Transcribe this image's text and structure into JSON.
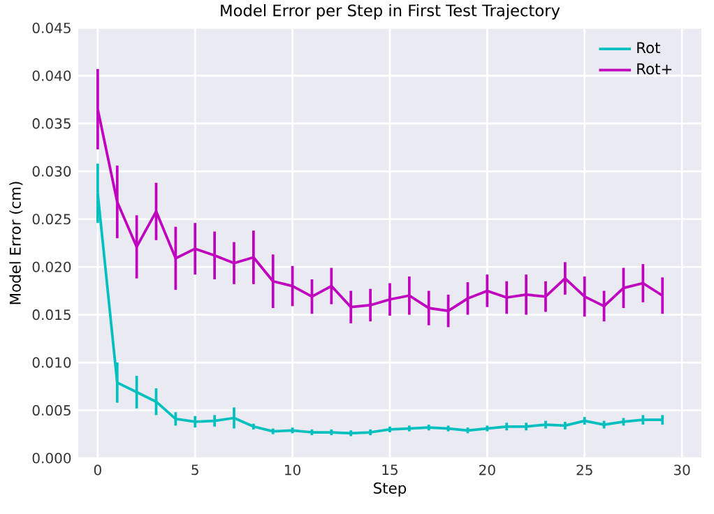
{
  "chart_data": {
    "type": "line",
    "title": "Model Error per Step in First Test Trajectory",
    "xlabel": "Step",
    "ylabel": "Model Error (cm)",
    "x": [
      0,
      1,
      2,
      3,
      4,
      5,
      6,
      7,
      8,
      9,
      10,
      11,
      12,
      13,
      14,
      15,
      16,
      17,
      18,
      19,
      20,
      21,
      22,
      23,
      24,
      25,
      26,
      27,
      28,
      29
    ],
    "series": [
      {
        "name": "Rot",
        "color": "#00bfbf",
        "values": [
          0.0277,
          0.0079,
          0.0069,
          0.0059,
          0.0041,
          0.0038,
          0.0039,
          0.0042,
          0.0033,
          0.0028,
          0.0029,
          0.0027,
          0.0027,
          0.0026,
          0.0027,
          0.003,
          0.0031,
          0.0032,
          0.0031,
          0.0029,
          0.0031,
          0.0033,
          0.0033,
          0.0035,
          0.0034,
          0.0039,
          0.0035,
          0.0038,
          0.004,
          0.004
        ],
        "errors": [
          0.0031,
          0.0021,
          0.0017,
          0.0014,
          0.0007,
          0.0006,
          0.0006,
          0.0011,
          0.0003,
          0.0003,
          0.0003,
          0.0003,
          0.0003,
          0.0003,
          0.0003,
          0.0003,
          0.0003,
          0.0003,
          0.0003,
          0.0003,
          0.0003,
          0.0004,
          0.0004,
          0.0004,
          0.0004,
          0.0004,
          0.0004,
          0.0004,
          0.0005,
          0.0005
        ]
      },
      {
        "name": "Rot+",
        "color": "#bf00bf",
        "values": [
          0.0365,
          0.0268,
          0.0221,
          0.0258,
          0.0209,
          0.0219,
          0.0212,
          0.0204,
          0.021,
          0.0185,
          0.018,
          0.0169,
          0.018,
          0.0158,
          0.016,
          0.0166,
          0.017,
          0.0157,
          0.0154,
          0.0167,
          0.0175,
          0.0168,
          0.0171,
          0.0169,
          0.0188,
          0.0169,
          0.0159,
          0.0178,
          0.0183,
          0.017
        ],
        "errors": [
          0.0042,
          0.0038,
          0.0033,
          0.003,
          0.0033,
          0.0027,
          0.0025,
          0.0022,
          0.0028,
          0.0028,
          0.0021,
          0.0018,
          0.0019,
          0.0017,
          0.0017,
          0.0017,
          0.002,
          0.0018,
          0.0017,
          0.0017,
          0.0017,
          0.0017,
          0.0021,
          0.0016,
          0.0017,
          0.0021,
          0.0016,
          0.0021,
          0.002,
          0.0019
        ]
      }
    ],
    "xlim": [
      -1,
      31
    ],
    "ylim": [
      0,
      0.045
    ],
    "xticks": [
      0,
      5,
      10,
      15,
      20,
      25,
      30
    ],
    "yticks": [
      {
        "value": 0,
        "label": "0.000"
      },
      {
        "value": 0.005,
        "label": "0.005"
      },
      {
        "value": 0.01,
        "label": "0.010"
      },
      {
        "value": 0.015,
        "label": "0.015"
      },
      {
        "value": 0.02,
        "label": "0.020"
      },
      {
        "value": 0.025,
        "label": "0.025"
      },
      {
        "value": 0.03,
        "label": "0.030"
      },
      {
        "value": 0.035,
        "label": "0.035"
      },
      {
        "value": 0.04,
        "label": "0.040"
      },
      {
        "value": 0.045,
        "label": "0.045"
      }
    ],
    "grid": true,
    "legend": "top right",
    "marker": "none",
    "line_style": "solid"
  }
}
